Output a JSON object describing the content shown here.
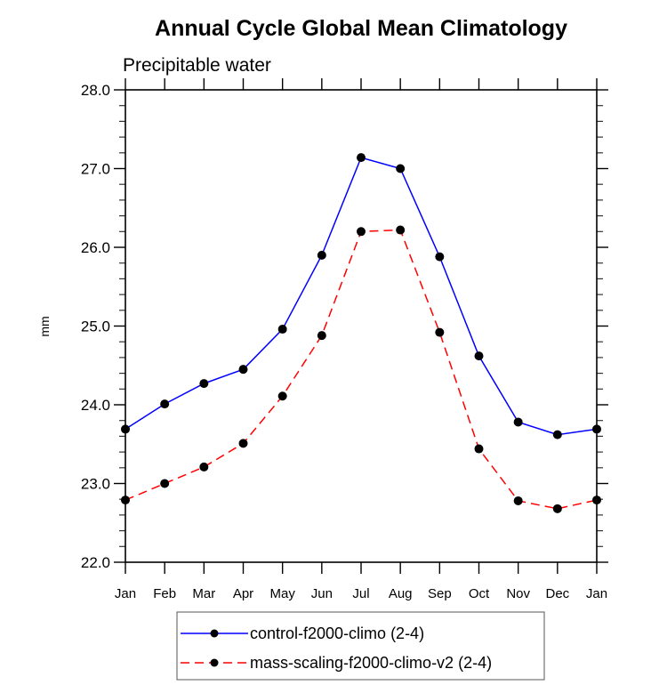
{
  "chart_data": {
    "type": "line",
    "title": "Annual Cycle Global Mean Climatology",
    "subtitle": "Precipitable water",
    "xlabel": "",
    "ylabel": "mm",
    "categories": [
      "Jan",
      "Feb",
      "Mar",
      "Apr",
      "May",
      "Jun",
      "Jul",
      "Aug",
      "Sep",
      "Oct",
      "Nov",
      "Dec",
      "Jan"
    ],
    "ylim": [
      22.0,
      28.0
    ],
    "yticks": [
      "22.0",
      "23.0",
      "24.0",
      "25.0",
      "26.0",
      "27.0",
      "28.0"
    ],
    "yminor_per_major": 5,
    "grid": false,
    "legend_position": "bottom-center",
    "series": [
      {
        "name": "control-f2000-climo (2-4)",
        "color": "#0000ff",
        "line_style": "solid",
        "marker": "filled-circle",
        "marker_color": "#000000",
        "values": [
          23.69,
          24.01,
          24.27,
          24.45,
          24.96,
          25.9,
          27.14,
          27.0,
          25.88,
          24.62,
          23.78,
          23.62,
          23.69
        ]
      },
      {
        "name": "mass-scaling-f2000-climo-v2 (2-4)",
        "color": "#ff0000",
        "line_style": "dashed",
        "marker": "filled-circle",
        "marker_color": "#000000",
        "values": [
          22.79,
          23.0,
          23.21,
          23.51,
          24.11,
          24.88,
          26.2,
          26.22,
          24.92,
          23.44,
          22.78,
          22.68,
          22.79
        ]
      }
    ]
  }
}
